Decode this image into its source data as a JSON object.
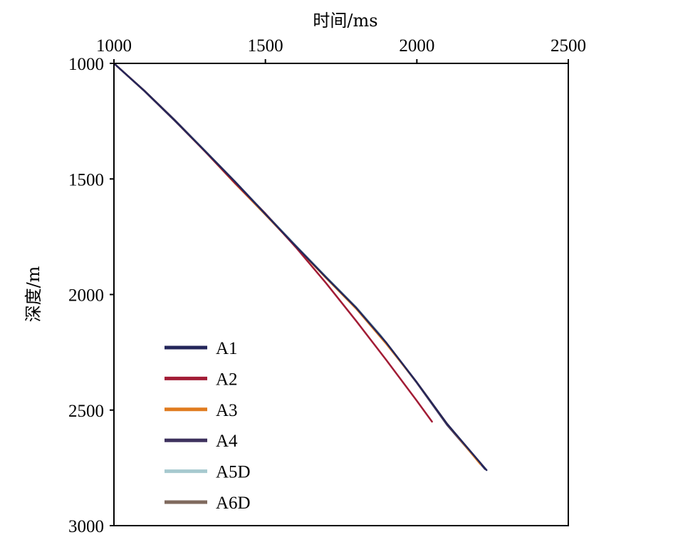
{
  "chart_data": {
    "type": "line",
    "title": "",
    "xlabel": "时间/ms",
    "ylabel": "深度/m",
    "xaxis_position": "top",
    "yaxis_inverted": true,
    "xlim": [
      1000,
      2500
    ],
    "ylim": [
      1000,
      3000
    ],
    "xticks": [
      "1000",
      "1500",
      "2000",
      "2500"
    ],
    "yticks": [
      "1000",
      "1500",
      "2000",
      "2500",
      "3000"
    ],
    "grid": false,
    "legend_position": "bottom-left",
    "series": [
      {
        "name": "A1",
        "color": "#23265a",
        "x": [
          1000,
          1100,
          1200,
          1300,
          1400,
          1500,
          1600,
          1700,
          1800,
          1900,
          2000,
          2100,
          2230
        ],
        "y": [
          1000,
          1118,
          1245,
          1378,
          1512,
          1652,
          1790,
          1925,
          2058,
          2210,
          2380,
          2560,
          2760
        ]
      },
      {
        "name": "A2",
        "color": "#a21c35",
        "x": [
          1000,
          1100,
          1200,
          1300,
          1400,
          1500,
          1600,
          1700,
          1800,
          1900,
          2000,
          2050
        ],
        "y": [
          1000,
          1118,
          1245,
          1380,
          1518,
          1650,
          1795,
          1950,
          2115,
          2285,
          2460,
          2550
        ]
      },
      {
        "name": "A3",
        "color": "#e07b1f",
        "x": [
          1000,
          1100,
          1200,
          1300,
          1400,
          1500,
          1600,
          1700,
          1800,
          1900,
          2000,
          2100,
          2210
        ],
        "y": [
          1000,
          1118,
          1245,
          1380,
          1520,
          1655,
          1792,
          1928,
          2062,
          2215,
          2380,
          2560,
          2735
        ]
      },
      {
        "name": "A4",
        "color": "#3e325e",
        "x": [
          1000,
          1100,
          1200,
          1300,
          1400,
          1500,
          1600,
          1700,
          1800,
          1900,
          2000,
          2100,
          2225
        ],
        "y": [
          1000,
          1119,
          1247,
          1380,
          1515,
          1654,
          1791,
          1927,
          2060,
          2212,
          2382,
          2565,
          2755
        ]
      },
      {
        "name": "A5D",
        "color": "#a7c9cf",
        "x": [
          1000,
          1100,
          1200,
          1300,
          1400,
          1500,
          1600,
          1700,
          1800,
          1880,
          1920
        ],
        "y": [
          1000,
          1117,
          1244,
          1377,
          1512,
          1650,
          1787,
          1922,
          2055,
          2175,
          2248
        ]
      },
      {
        "name": "A6D",
        "color": "#7f6a5e",
        "x": [
          1000,
          1100,
          1200,
          1300,
          1400,
          1500
        ],
        "y": [
          1000,
          1117,
          1244,
          1377,
          1512,
          1650
        ]
      }
    ]
  }
}
